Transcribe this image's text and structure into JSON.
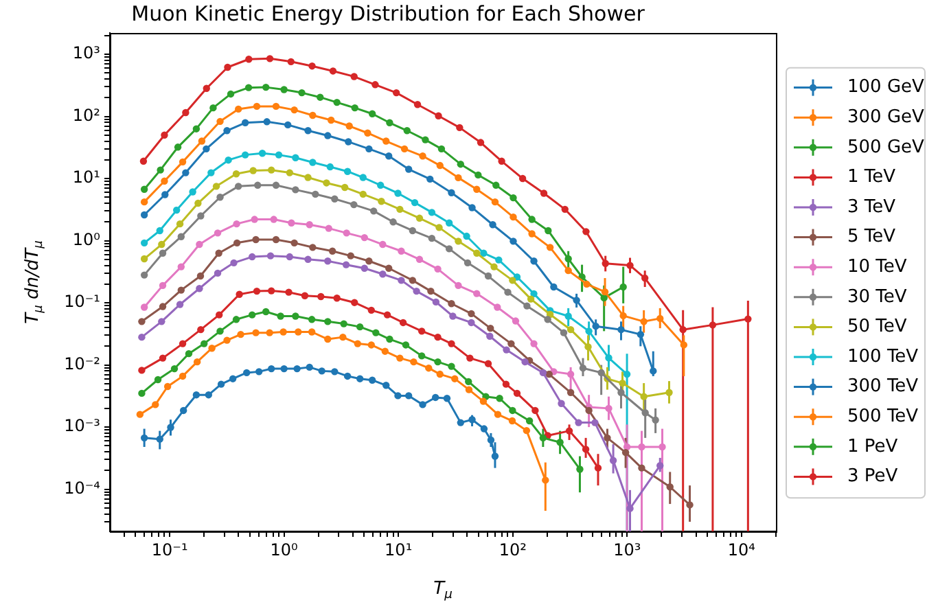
{
  "chart_data": {
    "type": "line",
    "title": "Muon Kinetic Energy Distribution for Each Shower",
    "xlabel": "T$_{μ}$",
    "ylabel": "T$_{μ}$ dn/dT$_{μ}$",
    "log": "xy",
    "marker": "circle",
    "legend": "right",
    "xlim": [
      0.03,
      20000
    ],
    "ylim": [
      2.1e-05,
      2200
    ],
    "xticks": [
      {
        "value": 0.04,
        "label": null
      },
      {
        "value": 0.05,
        "label": null
      },
      {
        "value": 0.06,
        "label": null
      },
      {
        "value": 0.07,
        "label": null
      },
      {
        "value": 0.08,
        "label": null
      },
      {
        "value": 0.09,
        "label": null
      },
      {
        "value": 0.1,
        "label": "10⁻¹"
      },
      {
        "value": 0.2,
        "label": null
      },
      {
        "value": 0.3,
        "label": null
      },
      {
        "value": 0.4,
        "label": null
      },
      {
        "value": 0.5,
        "label": null
      },
      {
        "value": 0.6,
        "label": null
      },
      {
        "value": 0.7,
        "label": null
      },
      {
        "value": 0.8,
        "label": null
      },
      {
        "value": 0.9,
        "label": null
      },
      {
        "value": 1,
        "label": "10⁰"
      },
      {
        "value": 2,
        "label": null
      },
      {
        "value": 3,
        "label": null
      },
      {
        "value": 4,
        "label": null
      },
      {
        "value": 5,
        "label": null
      },
      {
        "value": 6,
        "label": null
      },
      {
        "value": 7,
        "label": null
      },
      {
        "value": 8,
        "label": null
      },
      {
        "value": 9,
        "label": null
      },
      {
        "value": 10,
        "label": "10¹"
      },
      {
        "value": 20,
        "label": null
      },
      {
        "value": 30,
        "label": null
      },
      {
        "value": 40,
        "label": null
      },
      {
        "value": 50,
        "label": null
      },
      {
        "value": 60,
        "label": null
      },
      {
        "value": 70,
        "label": null
      },
      {
        "value": 80,
        "label": null
      },
      {
        "value": 90,
        "label": null
      },
      {
        "value": 100,
        "label": "10²"
      },
      {
        "value": 200,
        "label": null
      },
      {
        "value": 300,
        "label": null
      },
      {
        "value": 400,
        "label": null
      },
      {
        "value": 500,
        "label": null
      },
      {
        "value": 600,
        "label": null
      },
      {
        "value": 700,
        "label": null
      },
      {
        "value": 800,
        "label": null
      },
      {
        "value": 900,
        "label": null
      },
      {
        "value": 1000,
        "label": "10³"
      },
      {
        "value": 2000,
        "label": null
      },
      {
        "value": 3000,
        "label": null
      },
      {
        "value": 4000,
        "label": null
      },
      {
        "value": 5000,
        "label": null
      },
      {
        "value": 6000,
        "label": null
      },
      {
        "value": 7000,
        "label": null
      },
      {
        "value": 8000,
        "label": null
      },
      {
        "value": 9000,
        "label": null
      },
      {
        "value": 10000,
        "label": "10⁴"
      },
      {
        "value": 20000,
        "label": null
      }
    ],
    "yticks": [
      {
        "value": 3e-05,
        "label": null
      },
      {
        "value": 4e-05,
        "label": null
      },
      {
        "value": 5e-05,
        "label": null
      },
      {
        "value": 6e-05,
        "label": null
      },
      {
        "value": 7e-05,
        "label": null
      },
      {
        "value": 8e-05,
        "label": null
      },
      {
        "value": 9e-05,
        "label": null
      },
      {
        "value": 0.0001,
        "label": "10⁻⁴"
      },
      {
        "value": 0.0002,
        "label": null
      },
      {
        "value": 0.0003,
        "label": null
      },
      {
        "value": 0.0004,
        "label": null
      },
      {
        "value": 0.0005,
        "label": null
      },
      {
        "value": 0.0006,
        "label": null
      },
      {
        "value": 0.0007,
        "label": null
      },
      {
        "value": 0.0008,
        "label": null
      },
      {
        "value": 0.0009,
        "label": null
      },
      {
        "value": 0.001,
        "label": "10⁻³"
      },
      {
        "value": 0.002,
        "label": null
      },
      {
        "value": 0.003,
        "label": null
      },
      {
        "value": 0.004,
        "label": null
      },
      {
        "value": 0.005,
        "label": null
      },
      {
        "value": 0.006,
        "label": null
      },
      {
        "value": 0.007,
        "label": null
      },
      {
        "value": 0.008,
        "label": null
      },
      {
        "value": 0.009,
        "label": null
      },
      {
        "value": 0.01,
        "label": "10⁻²"
      },
      {
        "value": 0.02,
        "label": null
      },
      {
        "value": 0.03,
        "label": null
      },
      {
        "value": 0.04,
        "label": null
      },
      {
        "value": 0.05,
        "label": null
      },
      {
        "value": 0.06,
        "label": null
      },
      {
        "value": 0.07,
        "label": null
      },
      {
        "value": 0.08,
        "label": null
      },
      {
        "value": 0.09,
        "label": null
      },
      {
        "value": 0.1,
        "label": "10⁻¹"
      },
      {
        "value": 0.2,
        "label": null
      },
      {
        "value": 0.3,
        "label": null
      },
      {
        "value": 0.4,
        "label": null
      },
      {
        "value": 0.5,
        "label": null
      },
      {
        "value": 0.6,
        "label": null
      },
      {
        "value": 0.7,
        "label": null
      },
      {
        "value": 0.8,
        "label": null
      },
      {
        "value": 0.9,
        "label": null
      },
      {
        "value": 1,
        "label": "10⁰"
      },
      {
        "value": 2,
        "label": null
      },
      {
        "value": 3,
        "label": null
      },
      {
        "value": 4,
        "label": null
      },
      {
        "value": 5,
        "label": null
      },
      {
        "value": 6,
        "label": null
      },
      {
        "value": 7,
        "label": null
      },
      {
        "value": 8,
        "label": null
      },
      {
        "value": 9,
        "label": null
      },
      {
        "value": 10,
        "label": "10¹"
      },
      {
        "value": 20,
        "label": null
      },
      {
        "value": 30,
        "label": null
      },
      {
        "value": 40,
        "label": null
      },
      {
        "value": 50,
        "label": null
      },
      {
        "value": 60,
        "label": null
      },
      {
        "value": 70,
        "label": null
      },
      {
        "value": 80,
        "label": null
      },
      {
        "value": 90,
        "label": null
      },
      {
        "value": 100,
        "label": "10²"
      },
      {
        "value": 200,
        "label": null
      },
      {
        "value": 300,
        "label": null
      },
      {
        "value": 400,
        "label": null
      },
      {
        "value": 500,
        "label": null
      },
      {
        "value": 600,
        "label": null
      },
      {
        "value": 700,
        "label": null
      },
      {
        "value": 800,
        "label": null
      },
      {
        "value": 900,
        "label": null
      },
      {
        "value": 1000,
        "label": "10³"
      },
      {
        "value": 2000,
        "label": null
      }
    ],
    "series": [
      {
        "name": "100 GeV",
        "color": "#1f77b4",
        "x": [
          0.06,
          0.082,
          0.102,
          0.132,
          0.171,
          0.219,
          0.282,
          0.357,
          0.471,
          0.604,
          0.775,
          1.0,
          1.3,
          1.67,
          2.14,
          2.77,
          3.59,
          4.61,
          5.91,
          7.8,
          9.9,
          12.3,
          16.3,
          21.1,
          26.6,
          35.0,
          44.1,
          56.1,
          64.4,
          70.0
        ],
        "values": [
          0.00067,
          0.00064,
          0.00099,
          0.00185,
          0.0033,
          0.0033,
          0.0049,
          0.006,
          0.0075,
          0.0078,
          0.0087,
          0.0087,
          0.0087,
          0.0092,
          0.008,
          0.0078,
          0.0066,
          0.006,
          0.0057,
          0.0047,
          0.0032,
          0.0032,
          0.0023,
          0.003,
          0.0029,
          0.00118,
          0.00132,
          0.00094,
          0.00062,
          0.00034
        ],
        "errors": [
          [
            0.00048,
            0.00094
          ],
          [
            0.00044,
            0.00087
          ],
          [
            0.00073,
            0.00132
          ],
          null,
          null,
          null,
          null,
          null,
          null,
          null,
          null,
          null,
          null,
          null,
          null,
          null,
          null,
          null,
          null,
          null,
          null,
          null,
          null,
          null,
          null,
          null,
          [
            0.00103,
            0.00156
          ],
          null,
          [
            0.00048,
            0.0008
          ],
          [
            0.00022,
            0.00057
          ]
        ]
      },
      {
        "name": "300 GeV",
        "color": "#ff7f0e",
        "x": [
          0.055,
          0.075,
          0.096,
          0.13,
          0.174,
          0.234,
          0.317,
          0.418,
          0.567,
          0.748,
          0.986,
          1.33,
          1.75,
          2.41,
          3.27,
          4.4,
          5.8,
          7.65,
          10.3,
          13.6,
          18.4,
          23.1,
          31.1,
          41.4,
          55.3,
          74.0,
          98.9,
          132,
          193
        ],
        "values": [
          0.0016,
          0.0023,
          0.0045,
          0.0066,
          0.0112,
          0.0186,
          0.025,
          0.031,
          0.033,
          0.033,
          0.034,
          0.034,
          0.034,
          0.026,
          0.028,
          0.022,
          0.021,
          0.0166,
          0.0129,
          0.0112,
          0.0089,
          0.0071,
          0.006,
          0.004,
          0.0026,
          0.0016,
          0.00126,
          0.00088,
          0.00014
        ],
        "errors": [
          null,
          null,
          null,
          null,
          null,
          null,
          null,
          null,
          null,
          null,
          null,
          null,
          null,
          null,
          null,
          null,
          null,
          null,
          null,
          null,
          null,
          null,
          null,
          null,
          null,
          null,
          null,
          null,
          [
            4.5e-05,
            0.00027
          ]
        ]
      },
      {
        "name": "500 GeV",
        "color": "#2ca02c",
        "x": [
          0.057,
          0.079,
          0.11,
          0.147,
          0.2,
          0.276,
          0.382,
          0.526,
          0.694,
          0.933,
          1.26,
          1.75,
          2.41,
          3.33,
          4.61,
          6.35,
          8.38,
          11.6,
          16.0,
          22.1,
          29.1,
          41.0,
          58.1,
          76.7,
          99.5,
          140,
          184,
          259,
          386
        ],
        "values": [
          0.0035,
          0.0058,
          0.0087,
          0.0152,
          0.022,
          0.035,
          0.054,
          0.064,
          0.072,
          0.061,
          0.061,
          0.054,
          0.05,
          0.046,
          0.041,
          0.033,
          0.026,
          0.021,
          0.014,
          0.0112,
          0.0095,
          0.0054,
          0.0031,
          0.0029,
          0.00185,
          0.00126,
          0.00067,
          0.00057,
          0.00021
        ],
        "errors": [
          null,
          null,
          null,
          null,
          null,
          null,
          null,
          null,
          null,
          null,
          null,
          null,
          null,
          null,
          null,
          null,
          null,
          null,
          null,
          null,
          null,
          null,
          null,
          null,
          null,
          null,
          [
            0.00048,
            0.00094
          ],
          [
            0.00037,
            0.00087
          ],
          [
            8.9e-05,
            0.00034
          ]
        ]
      },
      {
        "name": "1 TeV",
        "color": "#d62728",
        "x": [
          0.057,
          0.087,
          0.13,
          0.187,
          0.271,
          0.407,
          0.578,
          0.775,
          1.1,
          1.52,
          2.1,
          2.9,
          4.13,
          5.8,
          8.0,
          11.0,
          16.0,
          22.1,
          29.1,
          42.2,
          61.0,
          87.3,
          109,
          157,
          202,
          312,
          435,
          557
        ],
        "values": [
          0.0082,
          0.0129,
          0.022,
          0.037,
          0.064,
          0.137,
          0.154,
          0.156,
          0.148,
          0.13,
          0.126,
          0.119,
          0.101,
          0.076,
          0.064,
          0.048,
          0.035,
          0.028,
          0.022,
          0.0129,
          0.0105,
          0.0049,
          0.0035,
          0.00185,
          0.00073,
          0.00087,
          0.00044,
          0.00022
        ],
        "errors": [
          null,
          null,
          null,
          null,
          null,
          null,
          null,
          null,
          null,
          null,
          null,
          null,
          null,
          null,
          null,
          null,
          null,
          null,
          null,
          null,
          null,
          null,
          null,
          null,
          null,
          [
            0.00062,
            0.0011
          ],
          [
            0.00032,
            0.00067
          ],
          [
            0.000115,
            0.00037
          ]
        ]
      },
      {
        "name": "3 TeV",
        "color": "#9467bd",
        "x": [
          0.057,
          0.085,
          0.123,
          0.182,
          0.263,
          0.364,
          0.526,
          0.762,
          1.12,
          1.62,
          2.41,
          3.49,
          5.05,
          7.29,
          10.6,
          14.4,
          21.3,
          29.9,
          43.4,
          63.0,
          88,
          128,
          184,
          266,
          376,
          523,
          756,
          1060,
          1940
        ],
        "values": [
          0.028,
          0.05,
          0.094,
          0.17,
          0.3,
          0.44,
          0.55,
          0.57,
          0.55,
          0.5,
          0.47,
          0.41,
          0.36,
          0.29,
          0.23,
          0.154,
          0.103,
          0.061,
          0.048,
          0.029,
          0.0175,
          0.0112,
          0.0075,
          0.0024,
          0.00118,
          0.00118,
          0.00029,
          4.9e-05,
          0.00024
        ],
        "errors": [
          null,
          null,
          null,
          null,
          null,
          null,
          null,
          null,
          null,
          null,
          null,
          null,
          null,
          null,
          null,
          null,
          null,
          null,
          null,
          null,
          null,
          null,
          null,
          null,
          null,
          null,
          [
            0.00018,
            0.00053
          ],
          [
            2.1e-05,
            9.7e-05
          ],
          [
            0.00019,
            0.00032
          ]
        ]
      },
      {
        "name": "5 TeV",
        "color": "#8c564b",
        "x": [
          0.057,
          0.087,
          0.126,
          0.186,
          0.269,
          0.388,
          0.567,
          0.851,
          1.23,
          1.78,
          2.65,
          3.83,
          5.53,
          8.24,
          13.3,
          19.2,
          29.1,
          43.4,
          63.8,
          96.8,
          140,
          208,
          321,
          463,
          671,
          970,
          1340,
          2370,
          3530
        ],
        "values": [
          0.05,
          0.087,
          0.16,
          0.27,
          0.63,
          0.92,
          1.04,
          1.04,
          0.92,
          0.78,
          0.68,
          0.57,
          0.47,
          0.36,
          0.23,
          0.154,
          0.097,
          0.067,
          0.039,
          0.022,
          0.0118,
          0.0071,
          0.0036,
          0.00185,
          0.00067,
          0.00039,
          0.00022,
          0.000109,
          5.6e-05
        ],
        "errors": [
          null,
          null,
          null,
          null,
          null,
          null,
          null,
          null,
          null,
          null,
          null,
          null,
          null,
          null,
          null,
          null,
          null,
          null,
          null,
          null,
          null,
          null,
          null,
          null,
          [
            0.00044,
            0.00094
          ],
          [
            0.00022,
            0.00067
          ],
          null,
          [
            5.8e-05,
            0.00019
          ],
          [
            3e-05,
            0.000115
          ]
        ]
      },
      {
        "name": "10 TeV",
        "color": "#e377c2",
        "x": [
          0.06,
          0.087,
          0.126,
          0.182,
          0.263,
          0.385,
          0.552,
          0.813,
          1.16,
          1.67,
          2.46,
          3.52,
          5.05,
          7.29,
          10.6,
          15.3,
          22.1,
          33.4,
          48.4,
          73.3,
          106,
          153,
          228,
          321,
          463,
          690,
          997,
          1340,
          2030
        ],
        "values": [
          0.085,
          0.19,
          0.38,
          0.87,
          1.33,
          1.86,
          2.2,
          2.2,
          1.93,
          1.81,
          1.58,
          1.33,
          1.12,
          0.87,
          0.68,
          0.5,
          0.35,
          0.19,
          0.141,
          0.085,
          0.051,
          0.022,
          0.0078,
          0.0071,
          0.0021,
          0.002,
          0.00048,
          0.00048,
          0.00048
        ],
        "errors": [
          null,
          null,
          null,
          null,
          null,
          null,
          null,
          null,
          null,
          null,
          null,
          null,
          null,
          null,
          null,
          null,
          null,
          null,
          null,
          null,
          null,
          null,
          null,
          [
            0.0036,
            0.0092
          ],
          [
            0.001,
            0.0033
          ],
          [
            0.0013,
            0.0031
          ],
          [
            2.1e-05,
            0.0011
          ],
          [
            2.1e-05,
            0.00087
          ],
          [
            2.1e-05,
            0.00094
          ]
        ]
      },
      {
        "name": "30 TeV",
        "color": "#7f7f7f",
        "x": [
          0.06,
          0.087,
          0.126,
          0.187,
          0.276,
          0.399,
          0.588,
          0.851,
          1.26,
          1.88,
          2.77,
          4.08,
          6.08,
          9.0,
          13.3,
          19.6,
          27.8,
          40.3,
          61.0,
          90.5,
          133,
          202,
          279,
          411,
          594,
          885,
          1440,
          1770
        ],
        "values": [
          0.28,
          0.63,
          1.16,
          2.5,
          5.0,
          7.5,
          7.8,
          7.8,
          6.6,
          5.6,
          4.7,
          3.8,
          3.0,
          2.0,
          1.45,
          1.09,
          0.74,
          0.44,
          0.27,
          0.148,
          0.089,
          0.054,
          0.033,
          0.0089,
          0.0075,
          0.0036,
          0.0017,
          0.0013
        ],
        "errors": [
          null,
          null,
          null,
          null,
          null,
          null,
          null,
          null,
          null,
          null,
          null,
          null,
          null,
          null,
          null,
          null,
          null,
          null,
          null,
          null,
          null,
          null,
          null,
          [
            0.0066,
            0.0129
          ],
          [
            0.0033,
            0.01
          ],
          [
            0.002,
            0.0055
          ],
          [
            0.00067,
            0.0028
          ],
          [
            0.0008,
            0.002
          ]
        ]
      },
      {
        "name": "50 TeV",
        "color": "#bcbd22",
        "x": [
          0.06,
          0.085,
          0.123,
          0.177,
          0.256,
          0.382,
          0.537,
          0.775,
          1.12,
          1.62,
          2.35,
          3.4,
          4.91,
          7.1,
          10.3,
          15.3,
          22.7,
          33.4,
          48.4,
          68.6,
          99.5,
          144,
          212,
          321,
          456,
          671,
          910,
          1400,
          2330
        ],
        "values": [
          0.51,
          0.87,
          1.86,
          4.0,
          7.5,
          11.9,
          13.4,
          13.7,
          12.4,
          10.4,
          8.5,
          7.2,
          5.6,
          4.3,
          3.2,
          2.3,
          1.63,
          0.98,
          0.63,
          0.38,
          0.23,
          0.115,
          0.065,
          0.037,
          0.0196,
          0.006,
          0.0051,
          0.0031,
          0.0036
        ],
        "errors": [
          null,
          null,
          null,
          null,
          null,
          null,
          null,
          null,
          null,
          null,
          null,
          null,
          null,
          null,
          null,
          null,
          null,
          null,
          null,
          null,
          null,
          null,
          null,
          null,
          [
            0.0118,
            0.03
          ],
          [
            0.004,
            0.0092
          ],
          [
            0.0033,
            0.0078
          ],
          [
            0.0016,
            0.0051
          ],
          [
            0.0024,
            0.0055
          ]
        ]
      },
      {
        "name": "100 TeV",
        "color": "#17becf",
        "x": [
          0.06,
          0.082,
          0.115,
          0.159,
          0.23,
          0.326,
          0.458,
          0.646,
          0.9,
          1.26,
          1.78,
          2.53,
          3.59,
          4.91,
          6.98,
          9.9,
          13.9,
          19.6,
          27.8,
          39.5,
          55.6,
          75.4,
          109,
          153,
          212,
          306,
          463,
          690,
          997
        ],
        "values": [
          0.92,
          1.45,
          3.1,
          6.1,
          12.4,
          19.8,
          24,
          25.5,
          24,
          21.6,
          18.2,
          15.4,
          13,
          10.4,
          7.8,
          5.8,
          4.1,
          2.85,
          1.93,
          1.18,
          0.63,
          0.49,
          0.26,
          0.14,
          0.075,
          0.061,
          0.035,
          0.013,
          0.0071
        ],
        "errors": [
          null,
          null,
          null,
          null,
          null,
          null,
          null,
          null,
          null,
          null,
          null,
          null,
          null,
          null,
          null,
          null,
          null,
          null,
          null,
          null,
          null,
          null,
          null,
          null,
          null,
          [
            0.042,
            0.082
          ],
          [
            0.025,
            0.05
          ],
          [
            0.008,
            0.021
          ],
          [
            2.1e-05,
            0.0152
          ]
        ]
      },
      {
        "name": "300 TeV",
        "color": "#1f77b4",
        "x": [
          0.06,
          0.091,
          0.138,
          0.209,
          0.317,
          0.458,
          0.708,
          1.08,
          1.62,
          2.41,
          3.65,
          5.53,
          8.24,
          12.3,
          18.9,
          29.1,
          44.1,
          66.8,
          101,
          153,
          228,
          361,
          532,
          885,
          1310,
          1690
        ],
        "values": [
          2.6,
          5.5,
          12.4,
          30,
          59,
          79,
          82,
          73,
          59,
          49,
          39,
          30,
          23,
          14.1,
          9.8,
          5.9,
          3.4,
          1.81,
          0.98,
          0.47,
          0.18,
          0.11,
          0.042,
          0.037,
          0.031,
          0.008
        ],
        "errors": [
          null,
          null,
          null,
          null,
          null,
          null,
          null,
          null,
          null,
          null,
          null,
          null,
          null,
          null,
          null,
          null,
          null,
          null,
          null,
          null,
          null,
          [
            0.084,
            0.14
          ],
          [
            0.03,
            0.054
          ],
          [
            0.025,
            0.05
          ],
          [
            0.02,
            0.042
          ],
          [
            0.0066,
            0.0166
          ]
        ]
      },
      {
        "name": "500 TeV",
        "color": "#ff7f0e",
        "x": [
          0.06,
          0.09,
          0.13,
          0.191,
          0.276,
          0.399,
          0.578,
          0.851,
          1.23,
          1.78,
          2.58,
          3.72,
          5.38,
          7.8,
          11.3,
          16.3,
          23.1,
          33.4,
          48.4,
          70.0,
          101,
          147,
          212,
          306,
          443,
          640,
          925,
          1400,
          1940,
          3130
        ],
        "values": [
          4.2,
          9.1,
          18.5,
          40,
          83,
          131,
          145,
          145,
          127,
          104,
          87,
          70,
          54,
          40,
          30,
          23,
          16.2,
          10.3,
          6.7,
          4.2,
          2.4,
          1.29,
          0.78,
          0.33,
          0.2,
          0.15,
          0.062,
          0.05,
          0.056,
          0.021
        ],
        "errors": [
          null,
          null,
          null,
          null,
          null,
          null,
          null,
          null,
          null,
          null,
          null,
          null,
          null,
          null,
          null,
          null,
          null,
          null,
          null,
          null,
          null,
          null,
          null,
          null,
          null,
          [
            0.089,
            0.25
          ],
          [
            0.036,
            0.089
          ],
          [
            0.033,
            0.076
          ],
          [
            0.039,
            0.082
          ],
          [
            0.0066,
            0.03
          ]
        ]
      },
      {
        "name": "1 PeV",
        "color": "#2ca02c",
        "x": [
          0.06,
          0.083,
          0.118,
          0.171,
          0.24,
          0.342,
          0.49,
          0.694,
          1.0,
          1.43,
          2.07,
          2.9,
          4.16,
          5.91,
          8.38,
          11.9,
          17.2,
          23.8,
          35.0,
          49.8,
          71.3,
          101,
          147,
          204,
          306,
          403,
          628,
          925
        ],
        "values": [
          6.7,
          13.7,
          32,
          63,
          137,
          229,
          290,
          294,
          270,
          240,
          203,
          168,
          137,
          110,
          79,
          59,
          42,
          30,
          17,
          11.4,
          7.8,
          4.9,
          2.2,
          1.45,
          0.51,
          0.26,
          0.12,
          0.18
        ],
        "errors": [
          null,
          null,
          null,
          null,
          null,
          null,
          null,
          null,
          null,
          null,
          null,
          null,
          null,
          null,
          null,
          null,
          null,
          null,
          null,
          null,
          null,
          null,
          null,
          null,
          [
            0.35,
            0.68
          ],
          [
            0.15,
            0.41
          ],
          [
            0.035,
            0.19
          ],
          [
            0.098,
            0.38
          ]
        ]
      },
      {
        "name": "3 PeV",
        "color": "#d62728",
        "x": [
          0.059,
          0.09,
          0.138,
          0.21,
          0.321,
          0.492,
          0.752,
          1.15,
          1.76,
          2.68,
          4.1,
          6.27,
          9.59,
          14.7,
          22.4,
          34.3,
          52.4,
          80.0,
          122,
          187,
          286,
          437,
          646,
          1060,
          1430,
          3080,
          5600,
          11400
        ],
        "values": [
          19,
          50,
          115,
          282,
          617,
          832,
          851,
          759,
          646,
          537,
          437,
          324,
          240,
          155,
          102,
          66,
          38,
          19,
          10,
          5.8,
          3.2,
          1.4,
          0.43,
          0.4,
          0.25,
          0.037,
          0.044,
          0.055
        ],
        "errors": [
          null,
          null,
          null,
          null,
          null,
          null,
          null,
          null,
          null,
          null,
          null,
          null,
          null,
          null,
          null,
          null,
          null,
          null,
          null,
          null,
          null,
          null,
          [
            0.32,
            0.57
          ],
          [
            0.3,
            0.53
          ],
          [
            0.18,
            0.33
          ],
          [
            2.1e-05,
            0.076
          ],
          [
            2.1e-05,
            0.085
          ],
          [
            2.1e-05,
            0.108
          ]
        ]
      }
    ]
  }
}
